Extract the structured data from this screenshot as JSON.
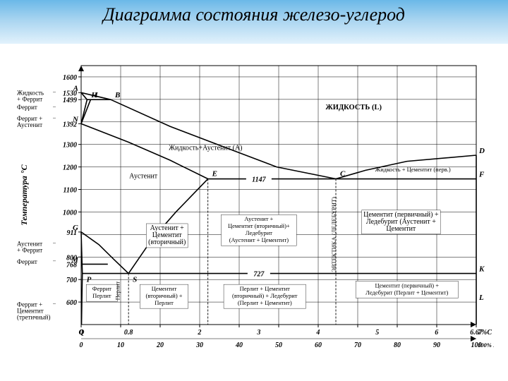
{
  "title": "Диаграмма состояния железо-углерод",
  "axes": {
    "ylabel": "Температура °С",
    "ylabel_fontsize": 12,
    "xlabel_top": "7%С",
    "xlabel_bot": "100% Fe₃C",
    "ylim": [
      500,
      1650
    ],
    "xlim_C": [
      0,
      7
    ],
    "xlim_Fe3C": [
      0,
      100
    ],
    "ytick_vals": [
      600,
      700,
      800,
      911,
      1000,
      1100,
      1200,
      1300,
      1392,
      1499,
      1530,
      1600
    ],
    "ytick_labels": [
      "600",
      "700",
      "800",
      "911",
      "1000",
      "1100",
      "1200",
      "1300",
      "1392",
      "1499",
      "1530",
      "1600"
    ],
    "xtick_top": [
      "0",
      "0.8",
      "2",
      "3",
      "4",
      "5",
      "6",
      "6.67"
    ],
    "xtick_bot": [
      "0",
      "10",
      "20",
      "30",
      "40",
      "50",
      "60",
      "70",
      "80",
      "90",
      "100"
    ],
    "grid_color": "#000000",
    "bg_color": "#ffffff",
    "line_color": "#000000",
    "line_width": 1.6,
    "grid_width": 0.5
  },
  "left_phase_labels": [
    {
      "text": "Жидкость\n+ Феррит",
      "T": 1520
    },
    {
      "text": "Феррит",
      "T": 1455
    },
    {
      "text": "Феррит +\nАустенит",
      "T": 1405
    },
    {
      "text": "Аустенит\n+ Феррит",
      "T": 850
    },
    {
      "text": "Феррит",
      "T": 770
    },
    {
      "text": "Феррит +\nЦементит\n(третичный)",
      "T": 580
    }
  ],
  "points": {
    "A": {
      "C": 0,
      "T": 1530,
      "lbl": "A"
    },
    "B": {
      "C": 0.5,
      "T": 1499,
      "lbl": "B"
    },
    "H": {
      "C": 0.1,
      "T": 1499,
      "lbl": "H"
    },
    "I": {
      "C": 0.16,
      "T": 1499,
      "lbl": "I"
    },
    "N": {
      "C": 0,
      "T": 1392,
      "lbl": "N"
    },
    "D": {
      "C": 6.67,
      "T": 1252,
      "lbl": "D"
    },
    "E": {
      "C": 2.14,
      "T": 1147,
      "lbl": "E"
    },
    "C": {
      "C": 4.3,
      "T": 1147,
      "lbl": "C"
    },
    "F": {
      "C": 6.67,
      "T": 1147,
      "lbl": "F"
    },
    "G": {
      "C": 0,
      "T": 911,
      "lbl": "G"
    },
    "M": {
      "C": 0,
      "T": 768,
      "lbl": "M"
    },
    "P": {
      "C": 0.02,
      "T": 727,
      "lbl": "P"
    },
    "S": {
      "C": 0.8,
      "T": 727,
      "lbl": "S"
    },
    "K": {
      "C": 6.67,
      "T": 727,
      "lbl": "K"
    },
    "Q": {
      "C": 0.006,
      "T": 500,
      "lbl": "Q"
    },
    "L": {
      "C": 6.67,
      "T": 600,
      "lbl": "L"
    }
  },
  "key_temps": {
    "eutectic": {
      "label": "1147",
      "T": 1147
    },
    "eutectoid": {
      "label": "727",
      "T": 727
    },
    "M": {
      "label": "768",
      "T": 768
    }
  },
  "region_labels": [
    {
      "text": "ЖИДКОСТЬ (L)",
      "C": 4.6,
      "T": 1455,
      "cls": "regionB",
      "size": 14
    },
    {
      "text": "Жидкость+Аустенит (A)",
      "C": 2.1,
      "T": 1275,
      "cls": "region"
    },
    {
      "text": "Аустенит",
      "C": 1.05,
      "T": 1150,
      "cls": "region"
    },
    {
      "text": "Жидкость + Цементит (перв.)",
      "C": 5.6,
      "T": 1180,
      "cls": "tiny"
    },
    {
      "text": "Аустенит +\nЦементит\n(вторичный)",
      "C": 1.45,
      "T": 920,
      "cls": "region"
    },
    {
      "text": "Аустенит +\nЦементит (вторичный)+\nЛедебурит\n(Аустенит + Цементит)",
      "C": 3.0,
      "T": 960,
      "cls": "tiny"
    },
    {
      "text": "Цементит (первичный) +\nЛедебурит (Аустенит +\nЦементит",
      "C": 5.4,
      "T": 980,
      "cls": "region"
    },
    {
      "text": "Феррит\n  Перлит",
      "C": 0.35,
      "T": 650,
      "cls": "tiny"
    },
    {
      "text": "Перлит",
      "C": 0.65,
      "T": 650,
      "cls": "tiny",
      "rotate": -90
    },
    {
      "text": "Цементит\n(вторичный) +\nПерлит",
      "C": 1.4,
      "T": 650,
      "cls": "tiny"
    },
    {
      "text": "Перлит + Цементит\n(вторичный) + Ледебурит\n(Перлит + Цементит)",
      "C": 3.1,
      "T": 650,
      "cls": "tiny"
    },
    {
      "text": "Цементит (первичный) +\nЛедебурит (Перлит + Цементит)",
      "C": 5.5,
      "T": 665,
      "cls": "tiny"
    },
    {
      "text": "ЭВТЕКТИКА (ЛЕДЕБУРИТ)",
      "C": 4.3,
      "T": 900,
      "cls": "tiny",
      "rotate": -90
    }
  ],
  "curves": [
    {
      "name": "liquidus_AB",
      "pts": [
        [
          0,
          1530
        ],
        [
          0.5,
          1499
        ]
      ]
    },
    {
      "name": "AHB_peritectic",
      "pts": [
        [
          0.1,
          1499
        ],
        [
          0.5,
          1499
        ]
      ]
    },
    {
      "name": "liquidus_BC",
      "pts": [
        [
          0.5,
          1499
        ],
        [
          1.5,
          1380
        ],
        [
          2.5,
          1280
        ],
        [
          3.3,
          1200
        ],
        [
          4.3,
          1147
        ]
      ]
    },
    {
      "name": "liquidus_CD",
      "pts": [
        [
          4.3,
          1147
        ],
        [
          4.8,
          1185
        ],
        [
          5.5,
          1225
        ],
        [
          6.67,
          1252
        ]
      ]
    },
    {
      "name": "solidus_AH",
      "pts": [
        [
          0,
          1530
        ],
        [
          0.1,
          1499
        ]
      ]
    },
    {
      "name": "HN",
      "pts": [
        [
          0.1,
          1499
        ],
        [
          0,
          1392
        ]
      ]
    },
    {
      "name": "IN",
      "pts": [
        [
          0.16,
          1499
        ],
        [
          0,
          1392
        ]
      ]
    },
    {
      "name": "NIE",
      "pts": [
        [
          0,
          1392
        ],
        [
          0.8,
          1310
        ],
        [
          1.5,
          1230
        ],
        [
          2.14,
          1147
        ]
      ]
    },
    {
      "name": "ECF",
      "pts": [
        [
          2.14,
          1147
        ],
        [
          6.67,
          1147
        ]
      ]
    },
    {
      "name": "GS",
      "pts": [
        [
          0,
          911
        ],
        [
          0.3,
          855
        ],
        [
          0.55,
          790
        ],
        [
          0.8,
          727
        ]
      ]
    },
    {
      "name": "ES",
      "pts": [
        [
          2.14,
          1147
        ],
        [
          1.6,
          1000
        ],
        [
          1.2,
          880
        ],
        [
          0.8,
          727
        ]
      ]
    },
    {
      "name": "GP",
      "pts": [
        [
          0,
          911
        ],
        [
          0.02,
          727
        ]
      ]
    },
    {
      "name": "MO_768",
      "pts": [
        [
          0,
          768
        ],
        [
          0.45,
          768
        ]
      ]
    },
    {
      "name": "PSK",
      "pts": [
        [
          0.02,
          727
        ],
        [
          6.67,
          727
        ]
      ]
    },
    {
      "name": "PQ",
      "pts": [
        [
          0.02,
          727
        ],
        [
          0.006,
          500
        ]
      ]
    },
    {
      "name": "Fe3C_right",
      "pts": [
        [
          6.67,
          1252
        ],
        [
          6.67,
          500
        ]
      ]
    },
    {
      "name": "eutectoid_vline",
      "pts": [
        [
          0.8,
          727
        ],
        [
          0.8,
          500
        ]
      ],
      "dash": "3,2"
    },
    {
      "name": "eutectic_vline",
      "pts": [
        [
          4.3,
          1147
        ],
        [
          4.3,
          500
        ]
      ],
      "dash": "3,2"
    },
    {
      "name": "E_vline",
      "pts": [
        [
          2.14,
          1147
        ],
        [
          2.14,
          500
        ]
      ],
      "dash": "3,2"
    }
  ],
  "colors": {
    "title_wave": "#6bb8e8",
    "text": "#000000"
  }
}
